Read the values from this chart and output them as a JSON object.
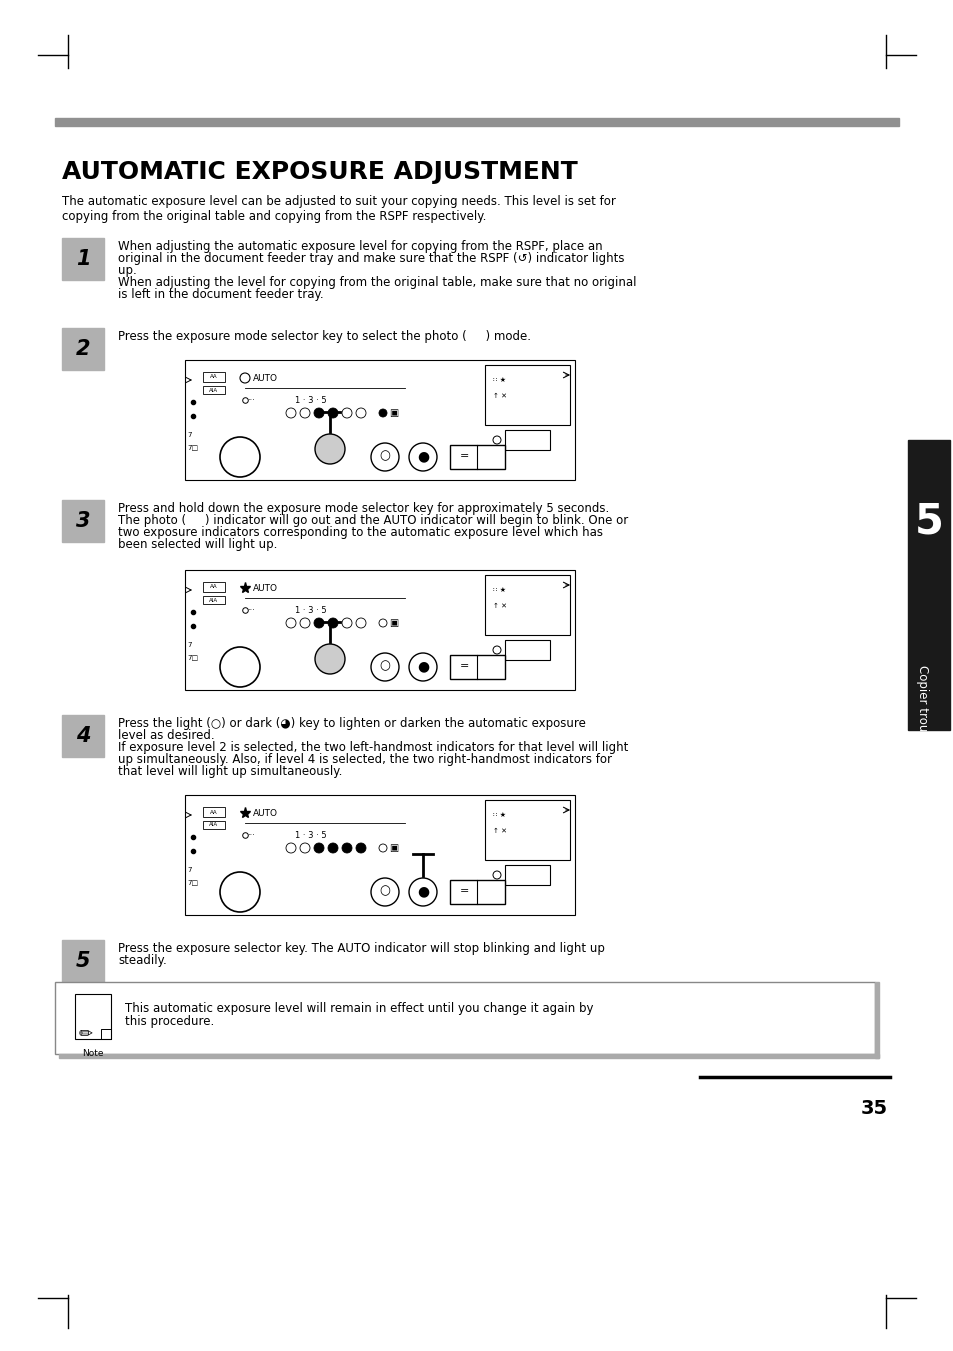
{
  "title": "AUTOMATIC EXPOSURE ADJUSTMENT",
  "intro_line1": "The automatic exposure level can be adjusted to suit your copying needs. This level is set for",
  "intro_line2": "copying from the original table and copying from the RSPF respectively.",
  "step1_num": "1",
  "step1_text_line1": "When adjusting the automatic exposure level for copying from the RSPF, place an",
  "step1_text_line2": "original in the document feeder tray and make sure that the RSPF (↺) indicator lights",
  "step1_text_line3": "up.",
  "step1_text_line4": "When adjusting the level for copying from the original table, make sure that no original",
  "step1_text_line5": "is left in the document feeder tray.",
  "step2_num": "2",
  "step2_text": "Press the exposure mode selector key to select the photo (     ) mode.",
  "step3_num": "3",
  "step3_text_line1": "Press and hold down the exposure mode selector key for approximately 5 seconds.",
  "step3_text_line2": "The photo (     ) indicator will go out and the AUTO indicator will begin to blink. One or",
  "step3_text_line3": "two exposure indicators corresponding to the automatic exposure level which has",
  "step3_text_line4": "been selected will light up.",
  "step4_num": "4",
  "step4_text_line1": "Press the light (○) or dark (◕) key to lighten or darken the automatic exposure",
  "step4_text_line2": "level as desired.",
  "step4_text_line3": "If exposure level 2 is selected, the two left-handmost indicators for that level will light",
  "step4_text_line4": "up simultaneously. Also, if level 4 is selected, the two right-handmost indicators for",
  "step4_text_line5": "that level will light up simultaneously.",
  "step5_num": "5",
  "step5_text_line1": "Press the exposure selector key. The AUTO indicator will stop blinking and light up",
  "step5_text_line2": "steadily.",
  "note_text_line1": "This automatic exposure level will remain in effect until you change it again by",
  "note_text_line2": "this procedure.",
  "page_num": "35",
  "sidebar_text": "Copier trouble?",
  "sidebar_num": "5",
  "bg_color": "#ffffff",
  "step_bg": "#b0b0b0",
  "bar_color": "#909090",
  "sidebar_bg": "#1a1a1a",
  "sidebar_text_color": "#ffffff",
  "black": "#000000"
}
